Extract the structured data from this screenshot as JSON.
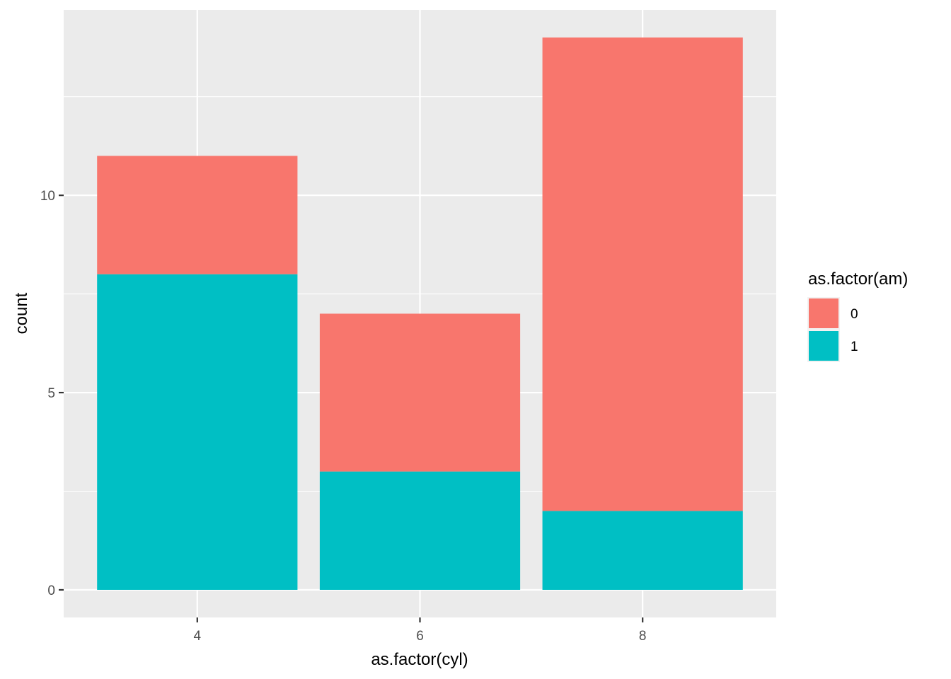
{
  "chart_data": {
    "type": "bar",
    "stacked": true,
    "categories": [
      "4",
      "6",
      "8"
    ],
    "series": [
      {
        "name": "0",
        "values": [
          3,
          4,
          12
        ],
        "color": "#F8766D"
      },
      {
        "name": "1",
        "values": [
          8,
          3,
          2
        ],
        "color": "#00BFC4"
      }
    ],
    "xlabel": "as.factor(cyl)",
    "ylabel": "count",
    "ylim": [
      -0.7,
      14.7
    ],
    "yticks": [
      0,
      5,
      10
    ],
    "yticklabels": [
      "0",
      "5",
      "10"
    ],
    "grid": true,
    "legend": {
      "title": "as.factor(am)",
      "position": "right",
      "entries": [
        "0",
        "1"
      ]
    },
    "colors": {
      "panel_background": "#EBEBEB",
      "grid": "#FFFFFF"
    }
  }
}
